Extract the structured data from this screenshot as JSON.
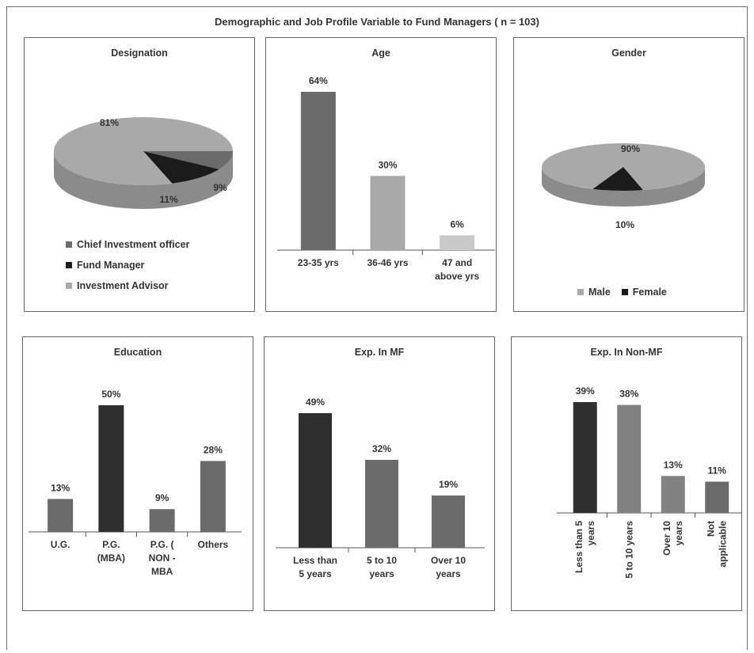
{
  "title": "Demographic and Job Profile Variable to Fund Managers ( n = 103)",
  "colors": {
    "dark": "#2f2f2f",
    "black": "#1b1b1b",
    "mid": "#6b6b6b",
    "medium": "#828282",
    "light": "#a9a9a9",
    "lighter": "#c9c9c9"
  },
  "chart_data": [
    {
      "id": "designation",
      "type": "pie",
      "title": "Designation",
      "slices": [
        {
          "label": "Chief Investment officer",
          "value": 9,
          "display": "9%",
          "color": "#6b6b6b"
        },
        {
          "label": "Fund Manager",
          "value": 11,
          "display": "11%",
          "color": "#1b1b1b"
        },
        {
          "label": "Investment Advisor",
          "value": 81,
          "display": "81%",
          "color": "#a9a9a9"
        }
      ],
      "legend_position": "bottom"
    },
    {
      "id": "age",
      "type": "bar",
      "title": "Age",
      "categories": [
        "23-35 yrs",
        "36-46 yrs",
        "47 and above yrs"
      ],
      "category_lines": [
        [
          "23-35 yrs"
        ],
        [
          "36-46 yrs"
        ],
        [
          "47 and",
          "above yrs"
        ]
      ],
      "values": [
        64,
        30,
        6
      ],
      "value_labels": [
        "64%",
        "30%",
        "6%"
      ],
      "colors": [
        "#6b6b6b",
        "#a9a9a9",
        "#c9c9c9"
      ]
    },
    {
      "id": "gender",
      "type": "pie",
      "title": "Gender",
      "slices": [
        {
          "label": "Male",
          "value": 90,
          "display": "90%",
          "color": "#a9a9a9"
        },
        {
          "label": "Female",
          "value": 10,
          "display": "10%",
          "color": "#1b1b1b"
        }
      ],
      "legend_position": "bottom"
    },
    {
      "id": "education",
      "type": "bar",
      "title": "Education",
      "categories": [
        "U.G.",
        "P.G. (MBA)",
        "P.G. ( NON - MBA",
        "Others"
      ],
      "category_lines": [
        [
          "U.G."
        ],
        [
          "P.G.",
          "(MBA)"
        ],
        [
          "P.G. (",
          "NON -",
          "MBA"
        ],
        [
          "Others"
        ]
      ],
      "values": [
        13,
        50,
        9,
        28
      ],
      "value_labels": [
        "13%",
        "50%",
        "9%",
        "28%"
      ],
      "colors": [
        "#6b6b6b",
        "#2f2f2f",
        "#6b6b6b",
        "#6b6b6b"
      ]
    },
    {
      "id": "expmf",
      "type": "bar",
      "title": "Exp. In MF",
      "categories": [
        "Less than 5 years",
        "5 to 10 years",
        "Over 10 years"
      ],
      "category_lines": [
        [
          "Less than",
          "5 years"
        ],
        [
          "5 to 10",
          "years"
        ],
        [
          "Over 10",
          "years"
        ]
      ],
      "values": [
        49,
        32,
        19
      ],
      "value_labels": [
        "49%",
        "32%",
        "19%"
      ],
      "colors": [
        "#2f2f2f",
        "#6b6b6b",
        "#6b6b6b"
      ]
    },
    {
      "id": "expnonmf",
      "type": "bar",
      "title": "Exp. In Non-MF",
      "categories": [
        "Less than 5 years",
        "5 to 10 years",
        "Over 10 years",
        "Not applicable"
      ],
      "category_lines": [
        [
          "Less than 5",
          "years"
        ],
        [
          "5 to 10 years"
        ],
        [
          "Over 10",
          "years"
        ],
        [
          "Not",
          "applicable"
        ]
      ],
      "values": [
        39,
        38,
        13,
        11
      ],
      "value_labels": [
        "39%",
        "38%",
        "13%",
        "11%"
      ],
      "colors": [
        "#2f2f2f",
        "#828282",
        "#828282",
        "#6b6b6b"
      ],
      "rotated_labels": true
    }
  ]
}
